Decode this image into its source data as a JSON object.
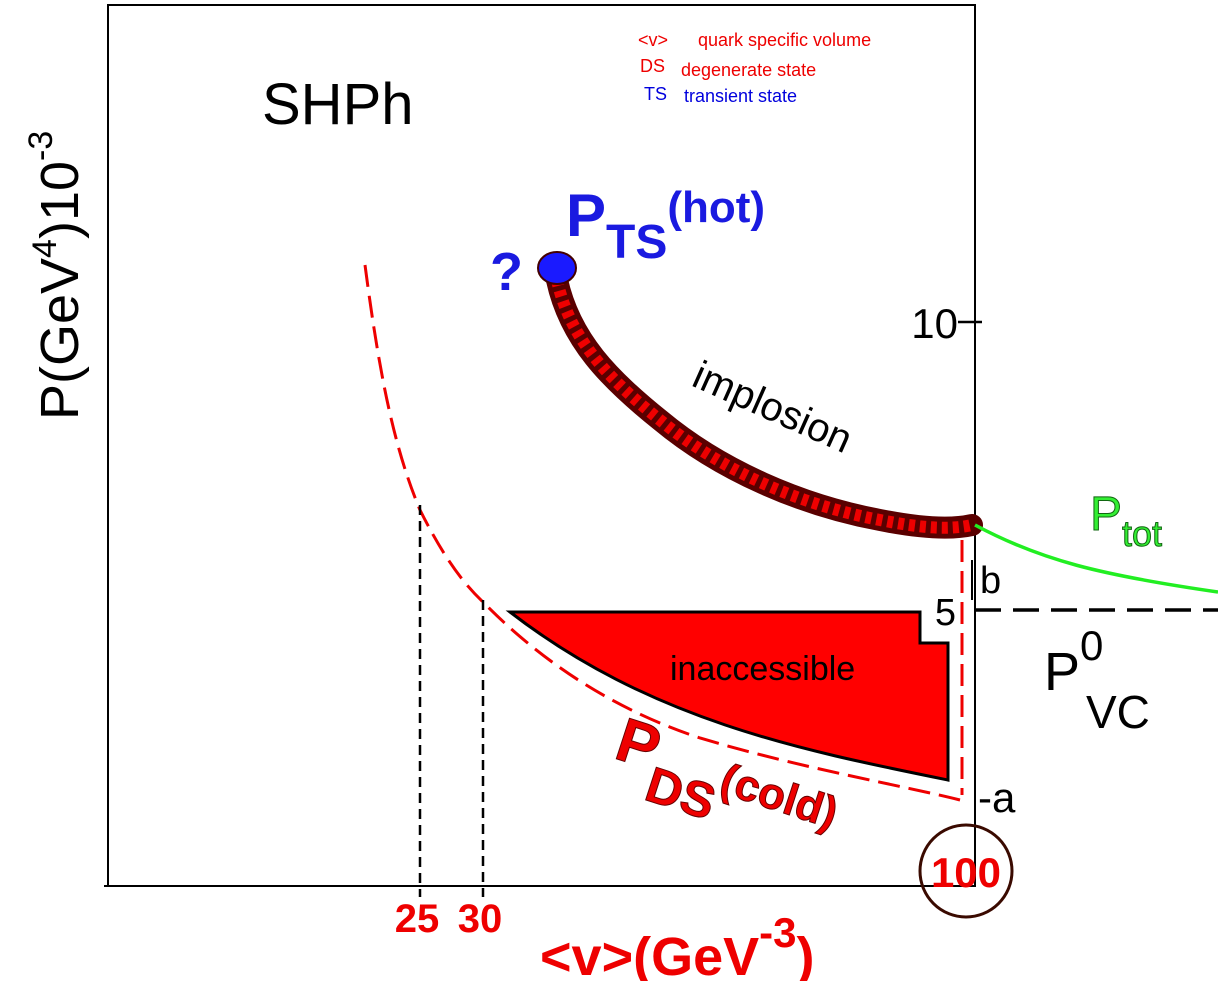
{
  "title": "SHPh",
  "y_axis": {
    "main": "P(GeV",
    "sup1": "4",
    "mid": ")10",
    "sup2": "-3"
  },
  "x_axis": {
    "main": "<v>(GeV",
    "sup": "-3",
    "end": ")"
  },
  "legend": [
    {
      "key": "<v>",
      "text": "quark specific volume"
    },
    {
      "key": "DS",
      "text": "degenerate state"
    },
    {
      "key": "TS",
      "text": "transient state"
    }
  ],
  "labels": {
    "p_ts": {
      "p": "P",
      "sub": "TS",
      "sup": "(hot)"
    },
    "question": "?",
    "implosion": "implosion",
    "p_tot": {
      "p": "P",
      "sub": "tot"
    },
    "p_vc": {
      "p": "P",
      "sup": "0",
      "sub": "VC"
    },
    "p_ds": {
      "p": "P",
      "sub": "DS",
      "sup": "(cold)"
    },
    "inaccessible": "inaccessible",
    "b": "b",
    "a": "-a"
  },
  "y_ticks": [
    "10",
    "5"
  ],
  "x_ticks": [
    "25",
    "30",
    "100"
  ]
}
